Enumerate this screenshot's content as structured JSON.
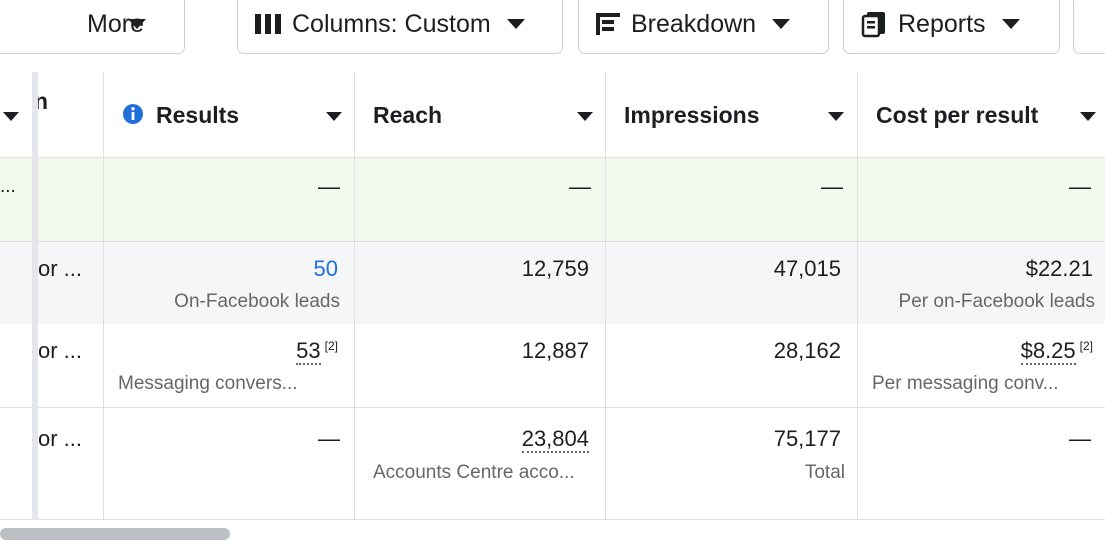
{
  "toolbar": {
    "more_label": "More",
    "columns_label": "Columns: Custom",
    "breakdown_label": "Breakdown",
    "reports_label": "Reports"
  },
  "table": {
    "first_col_header_fragment": "n",
    "headers": {
      "results": "Results",
      "reach": "Reach",
      "impressions": "Impressions",
      "cost_per_result": "Cost per result"
    },
    "summary_row": {
      "name_fragment": "...",
      "results": "—",
      "reach": "—",
      "impressions": "—",
      "cost_per_result": "—"
    },
    "rows": [
      {
        "name_fragment": "or ...",
        "results": "50",
        "results_sub": "On-Facebook leads",
        "reach": "12,759",
        "impressions": "47,015",
        "cost_per_result": "$22.21",
        "cost_sub": "Per on-Facebook leads"
      },
      {
        "name_fragment": "or ...",
        "results": "53",
        "results_note": "[2]",
        "results_sub": "Messaging convers...",
        "reach": "12,887",
        "impressions": "28,162",
        "cost_per_result": "$8.25",
        "cost_note": "[2]",
        "cost_sub": "Per messaging conv..."
      },
      {
        "name_fragment": "or ...",
        "results": "—",
        "reach": "23,804",
        "reach_sub": "Accounts Centre acco...",
        "impressions": "75,177",
        "impressions_sub": "Total",
        "cost_per_result": "—"
      }
    ]
  },
  "colors": {
    "summary_bg": "#f3f9ec",
    "alt_row_bg": "#f5f6f7",
    "link": "#216fdb",
    "border": "#dddfe2"
  }
}
